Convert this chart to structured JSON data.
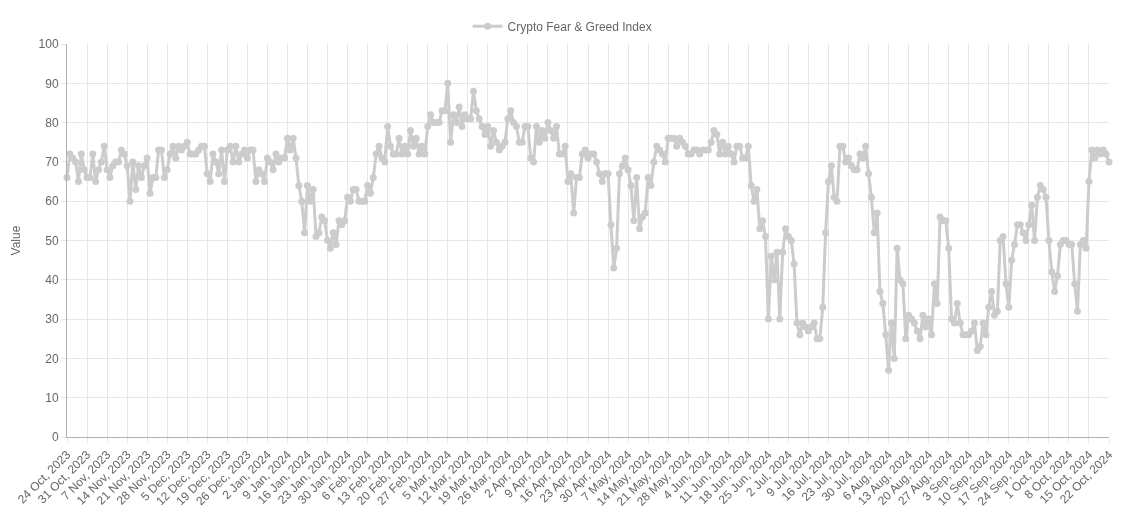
{
  "chart_data": {
    "type": "line",
    "ylabel": "Value",
    "legend": "top",
    "grid": true,
    "marker": "circle",
    "line_style": "solid",
    "xlim": [
      "2023-10-24",
      "2024-10-22"
    ],
    "ylim": [
      0,
      100
    ],
    "yticks": [
      0,
      10,
      20,
      30,
      40,
      50,
      60,
      70,
      80,
      90,
      100
    ],
    "xticks": [
      {
        "value": "2023-10-24",
        "label": "24 Oct, 2023"
      },
      {
        "value": "2023-10-31",
        "label": "31 Oct, 2023"
      },
      {
        "value": "2023-11-07",
        "label": "7 Nov, 2023"
      },
      {
        "value": "2023-11-14",
        "label": "14 Nov, 2023"
      },
      {
        "value": "2023-11-21",
        "label": "21 Nov, 2023"
      },
      {
        "value": "2023-11-28",
        "label": "28 Nov, 2023"
      },
      {
        "value": "2023-12-05",
        "label": "5 Dec, 2023"
      },
      {
        "value": "2023-12-12",
        "label": "12 Dec, 2023"
      },
      {
        "value": "2023-12-19",
        "label": "19 Dec, 2023"
      },
      {
        "value": "2023-12-26",
        "label": "26 Dec, 2023"
      },
      {
        "value": "2024-01-02",
        "label": "2 Jan, 2024"
      },
      {
        "value": "2024-01-09",
        "label": "9 Jan, 2024"
      },
      {
        "value": "2024-01-16",
        "label": "16 Jan, 2024"
      },
      {
        "value": "2024-01-23",
        "label": "23 Jan, 2024"
      },
      {
        "value": "2024-01-30",
        "label": "30 Jan, 2024"
      },
      {
        "value": "2024-02-06",
        "label": "6 Feb, 2024"
      },
      {
        "value": "2024-02-13",
        "label": "13 Feb, 2024"
      },
      {
        "value": "2024-02-20",
        "label": "20 Feb, 2024"
      },
      {
        "value": "2024-02-27",
        "label": "27 Feb, 2024"
      },
      {
        "value": "2024-03-05",
        "label": "5 Mar, 2024"
      },
      {
        "value": "2024-03-12",
        "label": "12 Mar, 2024"
      },
      {
        "value": "2024-03-19",
        "label": "19 Mar, 2024"
      },
      {
        "value": "2024-03-26",
        "label": "26 Mar, 2024"
      },
      {
        "value": "2024-04-02",
        "label": "2 Apr, 2024"
      },
      {
        "value": "2024-04-09",
        "label": "9 Apr, 2024"
      },
      {
        "value": "2024-04-16",
        "label": "16 Apr, 2024"
      },
      {
        "value": "2024-04-23",
        "label": "23 Apr, 2024"
      },
      {
        "value": "2024-04-30",
        "label": "30 Apr, 2024"
      },
      {
        "value": "2024-05-07",
        "label": "7 May, 2024"
      },
      {
        "value": "2024-05-14",
        "label": "14 May, 2024"
      },
      {
        "value": "2024-05-21",
        "label": "21 May, 2024"
      },
      {
        "value": "2024-05-28",
        "label": "28 May, 2024"
      },
      {
        "value": "2024-06-04",
        "label": "4 Jun, 2024"
      },
      {
        "value": "2024-06-11",
        "label": "11 Jun, 2024"
      },
      {
        "value": "2024-06-18",
        "label": "18 Jun, 2024"
      },
      {
        "value": "2024-06-25",
        "label": "25 Jun, 2024"
      },
      {
        "value": "2024-07-02",
        "label": "2 Jul, 2024"
      },
      {
        "value": "2024-07-09",
        "label": "9 Jul, 2024"
      },
      {
        "value": "2024-07-16",
        "label": "16 Jul, 2024"
      },
      {
        "value": "2024-07-23",
        "label": "23 Jul, 2024"
      },
      {
        "value": "2024-07-30",
        "label": "30 Jul, 2024"
      },
      {
        "value": "2024-08-06",
        "label": "6 Aug, 2024"
      },
      {
        "value": "2024-08-13",
        "label": "13 Aug, 2024"
      },
      {
        "value": "2024-08-20",
        "label": "20 Aug, 2024"
      },
      {
        "value": "2024-08-27",
        "label": "27 Aug, 2024"
      },
      {
        "value": "2024-09-03",
        "label": "3 Sep, 2024"
      },
      {
        "value": "2024-09-10",
        "label": "10 Sep, 2024"
      },
      {
        "value": "2024-09-17",
        "label": "17 Sep, 2024"
      },
      {
        "value": "2024-09-24",
        "label": "24 Sep, 2024"
      },
      {
        "value": "2024-10-01",
        "label": "1 Oct, 2024"
      },
      {
        "value": "2024-10-08",
        "label": "8 Oct, 2024"
      },
      {
        "value": "2024-10-15",
        "label": "15 Oct, 2024"
      },
      {
        "value": "2024-10-22",
        "label": "22 Oct, 2024"
      }
    ],
    "x": [
      "2023-10-24",
      "2023-10-25",
      "2023-10-26",
      "2023-10-27",
      "2023-10-28",
      "2023-10-29",
      "2023-10-30",
      "2023-10-31",
      "2023-11-01",
      "2023-11-02",
      "2023-11-03",
      "2023-11-04",
      "2023-11-05",
      "2023-11-06",
      "2023-11-07",
      "2023-11-08",
      "2023-11-09",
      "2023-11-10",
      "2023-11-11",
      "2023-11-12",
      "2023-11-13",
      "2023-11-14",
      "2023-11-15",
      "2023-11-16",
      "2023-11-17",
      "2023-11-18",
      "2023-11-19",
      "2023-11-20",
      "2023-11-21",
      "2023-11-22",
      "2023-11-23",
      "2023-11-24",
      "2023-11-25",
      "2023-11-26",
      "2023-11-27",
      "2023-11-28",
      "2023-11-29",
      "2023-11-30",
      "2023-12-01",
      "2023-12-02",
      "2023-12-03",
      "2023-12-04",
      "2023-12-05",
      "2023-12-06",
      "2023-12-07",
      "2023-12-08",
      "2023-12-09",
      "2023-12-10",
      "2023-12-11",
      "2023-12-12",
      "2023-12-13",
      "2023-12-14",
      "2023-12-15",
      "2023-12-16",
      "2023-12-17",
      "2023-12-18",
      "2023-12-19",
      "2023-12-20",
      "2023-12-21",
      "2023-12-22",
      "2023-12-23",
      "2023-12-24",
      "2023-12-25",
      "2023-12-26",
      "2023-12-27",
      "2023-12-28",
      "2023-12-29",
      "2023-12-30",
      "2023-12-31",
      "2024-01-01",
      "2024-01-02",
      "2024-01-03",
      "2024-01-04",
      "2024-01-05",
      "2024-01-06",
      "2024-01-07",
      "2024-01-08",
      "2024-01-09",
      "2024-01-10",
      "2024-01-11",
      "2024-01-12",
      "2024-01-13",
      "2024-01-14",
      "2024-01-15",
      "2024-01-16",
      "2024-01-17",
      "2024-01-18",
      "2024-01-19",
      "2024-01-20",
      "2024-01-21",
      "2024-01-22",
      "2024-01-23",
      "2024-01-24",
      "2024-01-25",
      "2024-01-26",
      "2024-01-27",
      "2024-01-28",
      "2024-01-29",
      "2024-01-30",
      "2024-01-31",
      "2024-02-01",
      "2024-02-02",
      "2024-02-03",
      "2024-02-04",
      "2024-02-05",
      "2024-02-06",
      "2024-02-07",
      "2024-02-08",
      "2024-02-09",
      "2024-02-10",
      "2024-02-11",
      "2024-02-12",
      "2024-02-13",
      "2024-02-14",
      "2024-02-15",
      "2024-02-16",
      "2024-02-17",
      "2024-02-18",
      "2024-02-19",
      "2024-02-20",
      "2024-02-21",
      "2024-02-22",
      "2024-02-23",
      "2024-02-24",
      "2024-02-25",
      "2024-02-26",
      "2024-02-27",
      "2024-02-28",
      "2024-02-29",
      "2024-03-01",
      "2024-03-02",
      "2024-03-03",
      "2024-03-04",
      "2024-03-05",
      "2024-03-06",
      "2024-03-07",
      "2024-03-08",
      "2024-03-09",
      "2024-03-10",
      "2024-03-11",
      "2024-03-12",
      "2024-03-13",
      "2024-03-14",
      "2024-03-15",
      "2024-03-16",
      "2024-03-17",
      "2024-03-18",
      "2024-03-19",
      "2024-03-20",
      "2024-03-21",
      "2024-03-22",
      "2024-03-23",
      "2024-03-24",
      "2024-03-25",
      "2024-03-26",
      "2024-03-27",
      "2024-03-28",
      "2024-03-29",
      "2024-03-30",
      "2024-03-31",
      "2024-04-01",
      "2024-04-02",
      "2024-04-03",
      "2024-04-04",
      "2024-04-05",
      "2024-04-06",
      "2024-04-07",
      "2024-04-08",
      "2024-04-09",
      "2024-04-10",
      "2024-04-11",
      "2024-04-12",
      "2024-04-13",
      "2024-04-14",
      "2024-04-15",
      "2024-04-16",
      "2024-04-17",
      "2024-04-18",
      "2024-04-19",
      "2024-04-20",
      "2024-04-21",
      "2024-04-22",
      "2024-04-23",
      "2024-04-24",
      "2024-04-25",
      "2024-04-26",
      "2024-04-27",
      "2024-04-28",
      "2024-04-29",
      "2024-04-30",
      "2024-05-01",
      "2024-05-02",
      "2024-05-03",
      "2024-05-04",
      "2024-05-05",
      "2024-05-06",
      "2024-05-07",
      "2024-05-08",
      "2024-05-09",
      "2024-05-10",
      "2024-05-11",
      "2024-05-12",
      "2024-05-13",
      "2024-05-14",
      "2024-05-15",
      "2024-05-16",
      "2024-05-17",
      "2024-05-18",
      "2024-05-19",
      "2024-05-20",
      "2024-05-21",
      "2024-05-22",
      "2024-05-23",
      "2024-05-24",
      "2024-05-25",
      "2024-05-26",
      "2024-05-27",
      "2024-05-28",
      "2024-05-29",
      "2024-05-30",
      "2024-05-31",
      "2024-06-01",
      "2024-06-02",
      "2024-06-03",
      "2024-06-04",
      "2024-06-05",
      "2024-06-06",
      "2024-06-07",
      "2024-06-08",
      "2024-06-09",
      "2024-06-10",
      "2024-06-11",
      "2024-06-12",
      "2024-06-13",
      "2024-06-14",
      "2024-06-15",
      "2024-06-16",
      "2024-06-17",
      "2024-06-18",
      "2024-06-19",
      "2024-06-20",
      "2024-06-21",
      "2024-06-22",
      "2024-06-23",
      "2024-06-24",
      "2024-06-25",
      "2024-06-26",
      "2024-06-27",
      "2024-06-28",
      "2024-06-29",
      "2024-06-30",
      "2024-07-01",
      "2024-07-02",
      "2024-07-03",
      "2024-07-04",
      "2024-07-05",
      "2024-07-06",
      "2024-07-07",
      "2024-07-08",
      "2024-07-09",
      "2024-07-10",
      "2024-07-11",
      "2024-07-12",
      "2024-07-13",
      "2024-07-14",
      "2024-07-15",
      "2024-07-16",
      "2024-07-17",
      "2024-07-18",
      "2024-07-19",
      "2024-07-20",
      "2024-07-21",
      "2024-07-22",
      "2024-07-23",
      "2024-07-24",
      "2024-07-25",
      "2024-07-26",
      "2024-07-27",
      "2024-07-28",
      "2024-07-29",
      "2024-07-30",
      "2024-07-31",
      "2024-08-01",
      "2024-08-02",
      "2024-08-03",
      "2024-08-04",
      "2024-08-05",
      "2024-08-06",
      "2024-08-07",
      "2024-08-08",
      "2024-08-09",
      "2024-08-10",
      "2024-08-11",
      "2024-08-12",
      "2024-08-13",
      "2024-08-14",
      "2024-08-15",
      "2024-08-16",
      "2024-08-17",
      "2024-08-18",
      "2024-08-19",
      "2024-08-20",
      "2024-08-21",
      "2024-08-22",
      "2024-08-23",
      "2024-08-24",
      "2024-08-25",
      "2024-08-26",
      "2024-08-27",
      "2024-08-28",
      "2024-08-29",
      "2024-08-30",
      "2024-08-31",
      "2024-09-01",
      "2024-09-02",
      "2024-09-03",
      "2024-09-04",
      "2024-09-05",
      "2024-09-06",
      "2024-09-07",
      "2024-09-08",
      "2024-09-09",
      "2024-09-10",
      "2024-09-11",
      "2024-09-12",
      "2024-09-13",
      "2024-09-14",
      "2024-09-15",
      "2024-09-16",
      "2024-09-17",
      "2024-09-18",
      "2024-09-19",
      "2024-09-20",
      "2024-09-21",
      "2024-09-22",
      "2024-09-23",
      "2024-09-24",
      "2024-09-25",
      "2024-09-26",
      "2024-09-27",
      "2024-09-28",
      "2024-09-29",
      "2024-09-30",
      "2024-10-01",
      "2024-10-02",
      "2024-10-03",
      "2024-10-04",
      "2024-10-05",
      "2024-10-06",
      "2024-10-07",
      "2024-10-08",
      "2024-10-09",
      "2024-10-10",
      "2024-10-11",
      "2024-10-12",
      "2024-10-13",
      "2024-10-14",
      "2024-10-15",
      "2024-10-16",
      "2024-10-17",
      "2024-10-18",
      "2024-10-19",
      "2024-10-20",
      "2024-10-21",
      "2024-10-22"
    ],
    "series": [
      {
        "name": "Crypto Fear & Greed Index",
        "color": "#cccccc",
        "values": [
          66,
          72,
          71,
          70,
          65,
          72,
          68,
          66,
          66,
          72,
          65,
          68,
          70,
          74,
          68,
          66,
          69,
          70,
          70,
          73,
          72,
          69,
          60,
          70,
          63,
          69,
          66,
          69,
          71,
          62,
          66,
          66,
          73,
          73,
          66,
          68,
          72,
          74,
          71,
          74,
          73,
          74,
          75,
          72,
          72,
          72,
          73,
          74,
          74,
          67,
          65,
          72,
          70,
          67,
          73,
          65,
          73,
          74,
          70,
          74,
          70,
          72,
          73,
          71,
          73,
          73,
          65,
          68,
          67,
          65,
          71,
          70,
          68,
          72,
          70,
          71,
          71,
          76,
          73,
          76,
          71,
          64,
          60,
          52,
          64,
          60,
          63,
          51,
          52,
          56,
          55,
          50,
          48,
          52,
          49,
          55,
          54,
          55,
          61,
          60,
          63,
          63,
          60,
          60,
          60,
          64,
          62,
          66,
          72,
          74,
          71,
          70,
          79,
          74,
          72,
          72,
          76,
          72,
          74,
          72,
          78,
          74,
          76,
          72,
          74,
          72,
          79,
          82,
          80,
          80,
          80,
          83,
          83,
          90,
          75,
          82,
          80,
          84,
          79,
          82,
          81,
          81,
          88,
          83,
          81,
          79,
          77,
          79,
          74,
          78,
          75,
          73,
          74,
          75,
          81,
          83,
          80,
          79,
          75,
          75,
          79,
          79,
          71,
          70,
          79,
          75,
          78,
          76,
          80,
          78,
          76,
          79,
          72,
          72,
          74,
          65,
          67,
          57,
          66,
          66,
          72,
          73,
          71,
          72,
          72,
          70,
          67,
          65,
          67,
          67,
          54,
          43,
          48,
          67,
          69,
          71,
          68,
          64,
          55,
          66,
          53,
          56,
          57,
          66,
          64,
          70,
          74,
          73,
          72,
          70,
          76,
          76,
          76,
          74,
          76,
          75,
          74,
          72,
          72,
          73,
          73,
          72,
          73,
          73,
          73,
          75,
          78,
          77,
          72,
          75,
          72,
          74,
          72,
          70,
          74,
          74,
          71,
          71,
          74,
          64,
          60,
          63,
          53,
          55,
          51,
          30,
          46,
          40,
          47,
          30,
          47,
          53,
          51,
          50,
          44,
          29,
          26,
          29,
          28,
          27,
          28,
          29,
          25,
          25,
          33,
          52,
          65,
          69,
          61,
          60,
          74,
          74,
          70,
          71,
          69,
          68,
          68,
          72,
          71,
          74,
          67,
          61,
          52,
          57,
          37,
          34,
          26,
          17,
          29,
          20,
          48,
          40,
          39,
          25,
          31,
          30,
          29,
          27,
          25,
          31,
          28,
          30,
          26,
          39,
          34,
          56,
          55,
          55,
          48,
          30,
          29,
          34,
          29,
          26,
          26,
          26,
          27,
          29,
          22,
          23,
          29,
          26,
          33,
          37,
          31,
          32,
          50,
          51,
          39,
          33,
          45,
          49,
          54,
          54,
          52,
          50,
          54,
          59,
          50,
          61,
          64,
          63,
          61,
          50,
          42,
          37,
          41,
          49,
          50,
          50,
          49,
          49,
          39,
          32,
          49,
          50,
          48,
          65,
          73,
          71,
          73,
          72,
          73,
          72,
          70
        ]
      }
    ]
  }
}
